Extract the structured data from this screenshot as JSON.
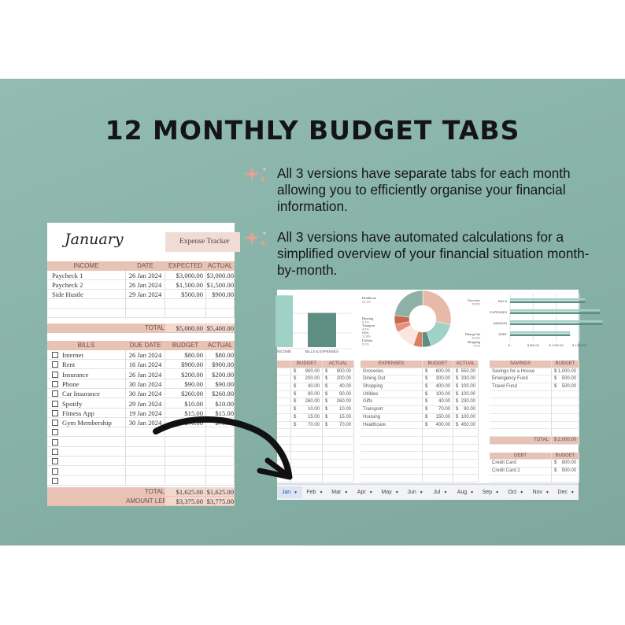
{
  "title": "12 MONTHLY BUDGET TABS",
  "bullets": [
    "All 3 versions have separate tabs for each month allowing you to efficiently organise your financial information.",
    "All 3 versions have automated calculations for a simplified overview of your financial situation month-by-month."
  ],
  "colors": {
    "background": "#8ab5aa",
    "header": "#e8c3b5",
    "accent": "#e8a291",
    "dark_teal": "#5e8d82",
    "light_teal": "#9fd1c6"
  },
  "left_sheet": {
    "month": "January",
    "badge": "Expense Tracker",
    "income_headers": [
      "INCOME",
      "DATE",
      "EXPECTED",
      "ACTUAL"
    ],
    "income": [
      [
        "Paycheck 1",
        "26 Jan 2024",
        "$3,000.00",
        "$3,000.00"
      ],
      [
        "Paycheck 2",
        "26 Jan 2024",
        "$1,500.00",
        "$1,500.00"
      ],
      [
        "Side Hustle",
        "29 Jan 2024",
        "$500.00",
        "$900.00"
      ],
      [
        "",
        "",
        "",
        ""
      ],
      [
        "",
        "",
        "",
        ""
      ]
    ],
    "income_total": {
      "label": "TOTAL",
      "expected": "$5,000.00",
      "actual": "$5,400.00"
    },
    "bills_headers": [
      "BILLS",
      "DUE DATE",
      "BUDGET",
      "ACTUAL"
    ],
    "bills": [
      [
        "Internet",
        "26 Jan 2024",
        "$80.00",
        "$80.00"
      ],
      [
        "Rent",
        "16 Jan 2024",
        "$900.00",
        "$900.00"
      ],
      [
        "Insurance",
        "26 Jan 2024",
        "$200.00",
        "$200.00"
      ],
      [
        "Phone",
        "30 Jan 2024",
        "$90.00",
        "$90.00"
      ],
      [
        "Car Insurance",
        "30 Jan 2024",
        "$260.00",
        "$260.00"
      ],
      [
        "Spotify",
        "29 Jan 2024",
        "$10.00",
        "$10.00"
      ],
      [
        "Fitness App",
        "19 Jan 2024",
        "$15.00",
        "$15.00"
      ],
      [
        "Gym Membership",
        "30 Jan 2024",
        "$70.00",
        "$70.00"
      ],
      [
        "",
        "",
        "",
        ""
      ],
      [
        "",
        "",
        "",
        ""
      ],
      [
        "",
        "",
        "",
        ""
      ],
      [
        "",
        "",
        "",
        ""
      ],
      [
        "",
        "",
        "",
        ""
      ],
      [
        "",
        "",
        "",
        ""
      ]
    ],
    "bills_total": {
      "label": "TOTAL",
      "budget": "$1,625.00",
      "actual": "$1,625.00"
    },
    "amount_left": {
      "label": "AMOUNT LEFT",
      "budget": "$3,375.00",
      "actual": "$3,775.00"
    }
  },
  "right_sheet": {
    "bar_chart": {
      "categories": [
        "INCOME",
        "BILLS & EXPENSES"
      ],
      "values": [
        5400,
        3575
      ]
    },
    "donut": {
      "slices": [
        {
          "label": "Groceries",
          "pct": "28.2%",
          "value": 550,
          "color": "#e8b9a8"
        },
        {
          "label": "Dining Out",
          "pct": "16.9%",
          "value": 330,
          "color": "#9fd1c6"
        },
        {
          "label": "Shopping",
          "pct": "5.1%",
          "value": 100,
          "color": "#5e8d82"
        },
        {
          "label": "Utilities",
          "pct": "5.1%",
          "value": 100,
          "color": "#d9805f"
        },
        {
          "label": "Gifts",
          "pct": "11.8%",
          "value": 230,
          "color": "#fbe6df"
        },
        {
          "label": "Transport",
          "pct": "4.6%",
          "value": 90,
          "color": "#e8907e"
        },
        {
          "label": "Housing",
          "pct": "5.1%",
          "value": 100,
          "color": "#c8694e"
        },
        {
          "label": "Healthcare",
          "pct": "23.1%",
          "value": 450,
          "color": "#8fb0a6"
        }
      ]
    },
    "hbar": {
      "categories": [
        "BILLS",
        "EXPENSES",
        "SAVINGS",
        "DEBT"
      ],
      "budget": [
        1625,
        1950,
        2000,
        1300
      ],
      "actual": [
        1625,
        1950,
        2000,
        1300
      ],
      "ticks": [
        "$ -",
        "$ 500.00",
        "$ 1,000.00",
        "$ 1,500.00"
      ]
    },
    "bills_headers": [
      "BUDGET",
      "ACTUAL"
    ],
    "bills": [
      [
        "900.00",
        "900.00"
      ],
      [
        "200.00",
        "200.00"
      ],
      [
        "40.00",
        "40.00"
      ],
      [
        "90.00",
        "90.00"
      ],
      [
        "260.00",
        "260.00"
      ],
      [
        "10.00",
        "10.00"
      ],
      [
        "15.00",
        "15.00"
      ],
      [
        "70.00",
        "70.00"
      ]
    ],
    "expenses_headers": [
      "EXPENSES",
      "BUDGET",
      "ACTUAL"
    ],
    "expenses": [
      [
        "Groceries",
        "600.00",
        "550.00"
      ],
      [
        "Dining Out",
        "300.00",
        "330.00"
      ],
      [
        "Shopping",
        "400.00",
        "100.00"
      ],
      [
        "Utilities",
        "100.00",
        "100.00"
      ],
      [
        "Gifts",
        "40.00",
        "230.00"
      ],
      [
        "Transport",
        "70.00",
        "90.00"
      ],
      [
        "Housing",
        "150.00",
        "100.00"
      ],
      [
        "Healthcare",
        "400.00",
        "450.00"
      ]
    ],
    "savings_headers": [
      "SAVINGS",
      "BUDGET"
    ],
    "savings": [
      [
        "Savings for a House",
        "1,000.00"
      ],
      [
        "Emergency Fund",
        "500.00"
      ],
      [
        "Travel Fund",
        "500.00"
      ]
    ],
    "savings_total": {
      "label": "TOTAL",
      "value": "2,000.00"
    },
    "debt_headers": [
      "DEBT",
      "BUDGET"
    ],
    "debt": [
      [
        "Credit Card",
        "800.00"
      ],
      [
        "Credit Card 2",
        "500.00"
      ]
    ],
    "currency": "$",
    "tabs": [
      "Jan",
      "Feb",
      "Mar",
      "Apr",
      "May",
      "Jun",
      "Jul",
      "Aug",
      "Sep",
      "Oct",
      "Nov",
      "Dec"
    ],
    "active_tab": "Jan"
  }
}
